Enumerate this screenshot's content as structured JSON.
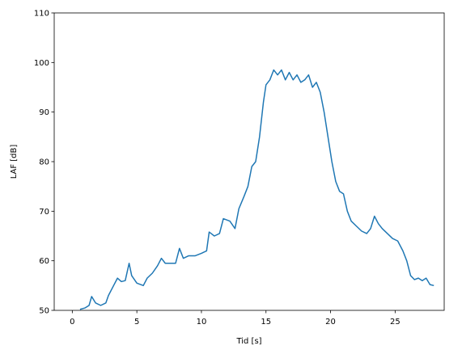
{
  "chart_data": {
    "type": "line",
    "x_label": "Tid [s]",
    "y_label": "LAF [dB]",
    "x": [
      0.6,
      1.0,
      1.3,
      1.5,
      1.8,
      2.2,
      2.6,
      2.8,
      3.2,
      3.5,
      3.8,
      4.1,
      4.4,
      4.6,
      5.0,
      5.5,
      5.8,
      6.2,
      6.6,
      6.9,
      7.2,
      7.6,
      8.0,
      8.3,
      8.6,
      9.0,
      9.5,
      10.0,
      10.4,
      10.6,
      11.0,
      11.4,
      11.7,
      12.2,
      12.6,
      12.9,
      13.3,
      13.6,
      13.9,
      14.2,
      14.5,
      14.8,
      15.0,
      15.3,
      15.6,
      15.9,
      16.2,
      16.5,
      16.8,
      17.1,
      17.4,
      17.7,
      18.0,
      18.3,
      18.6,
      18.9,
      19.2,
      19.5,
      19.8,
      20.1,
      20.4,
      20.7,
      21.0,
      21.3,
      21.6,
      22.0,
      22.4,
      22.8,
      23.1,
      23.4,
      23.7,
      24.0,
      24.4,
      24.8,
      25.2,
      25.6,
      25.9,
      26.2,
      26.5,
      26.8,
      27.1,
      27.4,
      27.7,
      28.0
    ],
    "series": [
      {
        "color": "#1f77b4",
        "values": [
          50.2,
          50.5,
          51,
          52.8,
          51.5,
          51,
          51.5,
          53,
          55,
          56.5,
          55.8,
          56,
          59.5,
          57,
          55.5,
          55,
          56.5,
          57.5,
          59,
          60.5,
          59.5,
          59.5,
          59.5,
          62.5,
          60.5,
          61,
          61,
          61.5,
          62,
          65.8,
          65,
          65.5,
          68.5,
          68,
          66.5,
          70.5,
          73,
          75,
          79,
          80,
          85,
          92,
          95.5,
          96.5,
          98.5,
          97.5,
          98.5,
          96.5,
          98,
          96.5,
          97.5,
          96,
          96.5,
          97.5,
          95,
          96,
          94,
          90,
          85,
          80,
          76,
          74,
          73.5,
          70,
          68,
          67,
          66,
          65.5,
          66.5,
          69,
          67.5,
          66.5,
          65.5,
          64.5,
          64,
          62,
          60,
          57,
          56.2,
          56.5,
          56,
          56.5,
          55.2,
          55
        ]
      }
    ],
    "xlim": [
      -1.4,
      28.8
    ],
    "ylim": [
      50,
      110
    ],
    "xticks": [
      0,
      5,
      10,
      15,
      20,
      25
    ],
    "yticks": [
      50,
      60,
      70,
      80,
      90,
      100,
      110
    ],
    "grid": false
  }
}
